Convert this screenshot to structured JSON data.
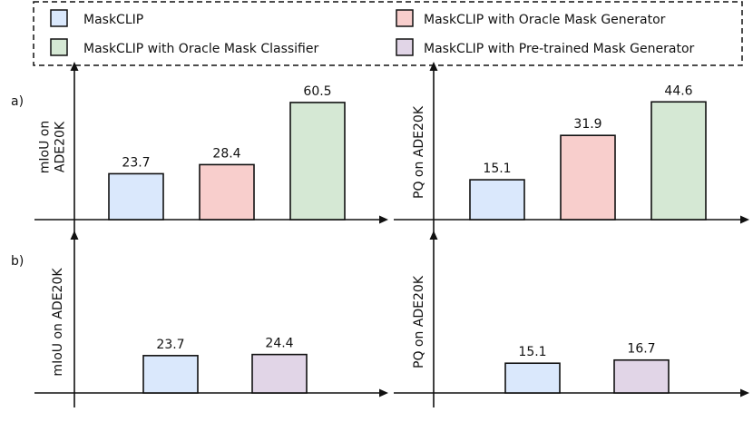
{
  "legend": {
    "items": [
      {
        "label": "MaskCLIP",
        "color": "#dae8fc"
      },
      {
        "label": "MaskCLIP with Oracle Mask Generator",
        "color": "#f8cecc"
      },
      {
        "label": "MaskCLIP with Oracle Mask Classifier",
        "color": "#d5e8d4"
      },
      {
        "label": "MaskCLIP with Pre-trained Mask Generator",
        "color": "#e1d5e7"
      }
    ]
  },
  "row_labels": {
    "a": "a)",
    "b": "b)"
  },
  "chart_data": [
    {
      "type": "bar",
      "row": "a",
      "ylabel_lines": [
        "mIoU on",
        "ADE20K"
      ],
      "categories": [
        "MaskCLIP",
        "MaskCLIP with Oracle Mask Generator",
        "MaskCLIP with Oracle Mask Classifier"
      ],
      "values": [
        23.7,
        28.4,
        60.5
      ],
      "value_labels": [
        "23.7",
        "28.4",
        "60.5"
      ],
      "colors": [
        "#dae8fc",
        "#f8cecc",
        "#d5e8d4"
      ],
      "ylim": [
        0,
        75
      ]
    },
    {
      "type": "bar",
      "row": "a",
      "ylabel_lines": [
        "PQ on ADE20K"
      ],
      "categories": [
        "MaskCLIP",
        "MaskCLIP with Oracle Mask Generator",
        "MaskCLIP with Oracle Mask Classifier"
      ],
      "values": [
        15.1,
        31.9,
        44.6
      ],
      "value_labels": [
        "15.1",
        "31.9",
        "44.6"
      ],
      "colors": [
        "#dae8fc",
        "#f8cecc",
        "#d5e8d4"
      ],
      "ylim": [
        0,
        55
      ]
    },
    {
      "type": "bar",
      "row": "b",
      "ylabel_lines": [
        "mIoU on ADE20K"
      ],
      "categories": [
        "MaskCLIP",
        "MaskCLIP with Pre-trained Mask Generator"
      ],
      "values": [
        23.7,
        24.4
      ],
      "value_labels": [
        "23.7",
        "24.4"
      ],
      "colors": [
        "#dae8fc",
        "#e1d5e7"
      ],
      "ylim": [
        0,
        95
      ]
    },
    {
      "type": "bar",
      "row": "b",
      "ylabel_lines": [
        "PQ on ADE20K"
      ],
      "categories": [
        "MaskCLIP",
        "MaskCLIP with Pre-trained Mask Generator"
      ],
      "values": [
        15.1,
        16.7
      ],
      "value_labels": [
        "15.1",
        "16.7"
      ],
      "colors": [
        "#dae8fc",
        "#e1d5e7"
      ],
      "ylim": [
        0,
        76
      ]
    }
  ]
}
